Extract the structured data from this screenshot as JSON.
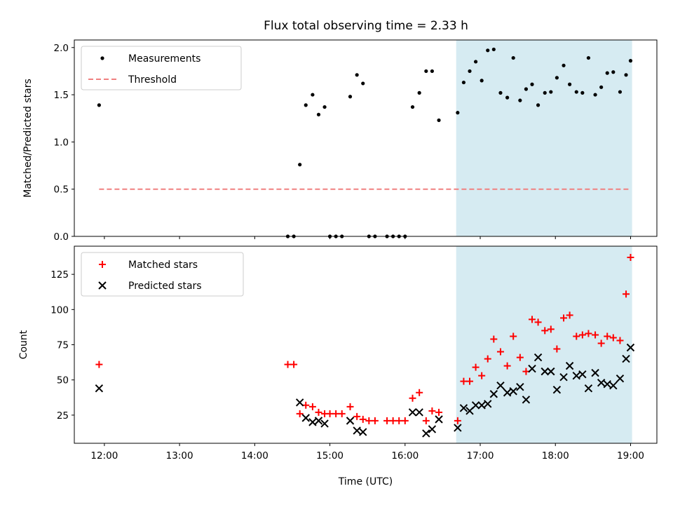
{
  "chart_data": [
    {
      "type": "scatter",
      "title": "Flux total observing time = 2.33 h",
      "ylabel": "Matched/Predicted stars",
      "xlabel": "",
      "x_unit": "hour of day (UTC)",
      "xlim": [
        11.6,
        19.35
      ],
      "ylim": [
        0,
        2.08
      ],
      "yticks": [
        "0.0",
        "0.5",
        "1.0",
        "1.5",
        "2.0"
      ],
      "shaded_region": {
        "x": [
          16.68,
          19.02
        ],
        "color": "#add8e6"
      },
      "legend": {
        "placement": "top-left",
        "entries": [
          "Measurements",
          "Threshold"
        ]
      },
      "series": [
        {
          "name": "Measurements",
          "color": "#000000",
          "marker": "dot",
          "points": [
            [
              11.93,
              1.39
            ],
            [
              14.44,
              0.0
            ],
            [
              14.52,
              0.0
            ],
            [
              14.6,
              0.76
            ],
            [
              14.68,
              1.39
            ],
            [
              14.77,
              1.5
            ],
            [
              14.85,
              1.29
            ],
            [
              14.93,
              1.37
            ],
            [
              15.0,
              0.0
            ],
            [
              15.08,
              0.0
            ],
            [
              15.16,
              0.0
            ],
            [
              15.27,
              1.48
            ],
            [
              15.36,
              1.71
            ],
            [
              15.44,
              1.62
            ],
            [
              15.52,
              0.0
            ],
            [
              15.6,
              0.0
            ],
            [
              15.76,
              0.0
            ],
            [
              15.84,
              0.0
            ],
            [
              15.92,
              0.0
            ],
            [
              16.0,
              0.0
            ],
            [
              16.1,
              1.37
            ],
            [
              16.19,
              1.52
            ],
            [
              16.28,
              1.75
            ],
            [
              16.36,
              1.75
            ],
            [
              16.45,
              1.23
            ],
            [
              16.7,
              1.31
            ],
            [
              16.78,
              1.63
            ],
            [
              16.86,
              1.75
            ],
            [
              16.94,
              1.85
            ],
            [
              17.02,
              1.65
            ],
            [
              17.1,
              1.97
            ],
            [
              17.18,
              1.98
            ],
            [
              17.27,
              1.52
            ],
            [
              17.36,
              1.47
            ],
            [
              17.44,
              1.89
            ],
            [
              17.53,
              1.44
            ],
            [
              17.61,
              1.56
            ],
            [
              17.69,
              1.61
            ],
            [
              17.77,
              1.39
            ],
            [
              17.86,
              1.52
            ],
            [
              17.94,
              1.53
            ],
            [
              18.02,
              1.68
            ],
            [
              18.11,
              1.81
            ],
            [
              18.19,
              1.61
            ],
            [
              18.28,
              1.53
            ],
            [
              18.36,
              1.52
            ],
            [
              18.44,
              1.89
            ],
            [
              18.53,
              1.5
            ],
            [
              18.61,
              1.58
            ],
            [
              18.69,
              1.73
            ],
            [
              18.77,
              1.74
            ],
            [
              18.86,
              1.53
            ],
            [
              18.94,
              1.71
            ],
            [
              19.0,
              1.86
            ]
          ]
        },
        {
          "name": "Threshold",
          "color": "#f08080",
          "style": "dashed",
          "points": [
            [
              11.93,
              0.5
            ],
            [
              19.0,
              0.5
            ]
          ]
        }
      ]
    },
    {
      "type": "scatter",
      "title": "",
      "ylabel": "Count",
      "xlabel": "Time (UTC)",
      "x_unit": "hour of day (UTC)",
      "xlim": [
        11.6,
        19.35
      ],
      "ylim": [
        5,
        145
      ],
      "yticks": [
        "25",
        "50",
        "75",
        "100",
        "125"
      ],
      "xticks": [
        "12:00",
        "13:00",
        "14:00",
        "15:00",
        "16:00",
        "17:00",
        "18:00",
        "19:00"
      ],
      "shaded_region": {
        "x": [
          16.68,
          19.02
        ],
        "color": "#add8e6"
      },
      "legend": {
        "placement": "top-left",
        "entries": [
          "Matched stars",
          "Predicted stars"
        ]
      },
      "series": [
        {
          "name": "Matched stars",
          "color": "#ff0000",
          "marker": "plus",
          "points": [
            [
              11.93,
              61
            ],
            [
              14.44,
              61
            ],
            [
              14.52,
              61
            ],
            [
              14.6,
              26
            ],
            [
              14.68,
              32
            ],
            [
              14.77,
              31
            ],
            [
              14.85,
              27
            ],
            [
              14.93,
              26
            ],
            [
              15.0,
              26
            ],
            [
              15.08,
              26
            ],
            [
              15.16,
              26
            ],
            [
              15.27,
              31
            ],
            [
              15.36,
              24
            ],
            [
              15.44,
              22
            ],
            [
              15.52,
              21
            ],
            [
              15.6,
              21
            ],
            [
              15.76,
              21
            ],
            [
              15.84,
              21
            ],
            [
              15.92,
              21
            ],
            [
              16.0,
              21
            ],
            [
              16.1,
              37
            ],
            [
              16.19,
              41
            ],
            [
              16.28,
              21
            ],
            [
              16.36,
              28
            ],
            [
              16.45,
              27
            ],
            [
              16.7,
              21
            ],
            [
              16.78,
              49
            ],
            [
              16.86,
              49
            ],
            [
              16.94,
              59
            ],
            [
              17.02,
              53
            ],
            [
              17.1,
              65
            ],
            [
              17.18,
              79
            ],
            [
              17.27,
              70
            ],
            [
              17.36,
              60
            ],
            [
              17.44,
              81
            ],
            [
              17.53,
              66
            ],
            [
              17.61,
              56
            ],
            [
              17.69,
              93
            ],
            [
              17.77,
              91
            ],
            [
              17.86,
              85
            ],
            [
              17.94,
              86
            ],
            [
              18.02,
              72
            ],
            [
              18.11,
              94
            ],
            [
              18.19,
              96
            ],
            [
              18.28,
              81
            ],
            [
              18.36,
              82
            ],
            [
              18.44,
              83
            ],
            [
              18.53,
              82
            ],
            [
              18.61,
              76
            ],
            [
              18.69,
              81
            ],
            [
              18.77,
              80
            ],
            [
              18.86,
              78
            ],
            [
              18.94,
              111
            ],
            [
              19.0,
              137
            ]
          ]
        },
        {
          "name": "Predicted stars",
          "color": "#000000",
          "marker": "x",
          "points": [
            [
              11.93,
              44
            ],
            [
              14.6,
              34
            ],
            [
              14.68,
              23
            ],
            [
              14.77,
              20
            ],
            [
              14.85,
              21
            ],
            [
              14.93,
              19
            ],
            [
              15.27,
              21
            ],
            [
              15.36,
              14
            ],
            [
              15.44,
              13
            ],
            [
              16.1,
              27
            ],
            [
              16.19,
              27
            ],
            [
              16.28,
              12
            ],
            [
              16.36,
              15
            ],
            [
              16.45,
              22
            ],
            [
              16.7,
              16
            ],
            [
              16.78,
              30
            ],
            [
              16.86,
              28
            ],
            [
              16.94,
              32
            ],
            [
              17.02,
              32
            ],
            [
              17.1,
              33
            ],
            [
              17.18,
              40
            ],
            [
              17.27,
              46
            ],
            [
              17.36,
              41
            ],
            [
              17.44,
              42
            ],
            [
              17.53,
              45
            ],
            [
              17.61,
              36
            ],
            [
              17.69,
              58
            ],
            [
              17.77,
              66
            ],
            [
              17.86,
              56
            ],
            [
              17.94,
              56
            ],
            [
              18.02,
              43
            ],
            [
              18.11,
              52
            ],
            [
              18.19,
              60
            ],
            [
              18.28,
              53
            ],
            [
              18.36,
              54
            ],
            [
              18.44,
              44
            ],
            [
              18.53,
              55
            ],
            [
              18.61,
              48
            ],
            [
              18.69,
              47
            ],
            [
              18.77,
              46
            ],
            [
              18.86,
              51
            ],
            [
              18.94,
              65
            ],
            [
              19.0,
              73
            ]
          ]
        }
      ]
    }
  ]
}
